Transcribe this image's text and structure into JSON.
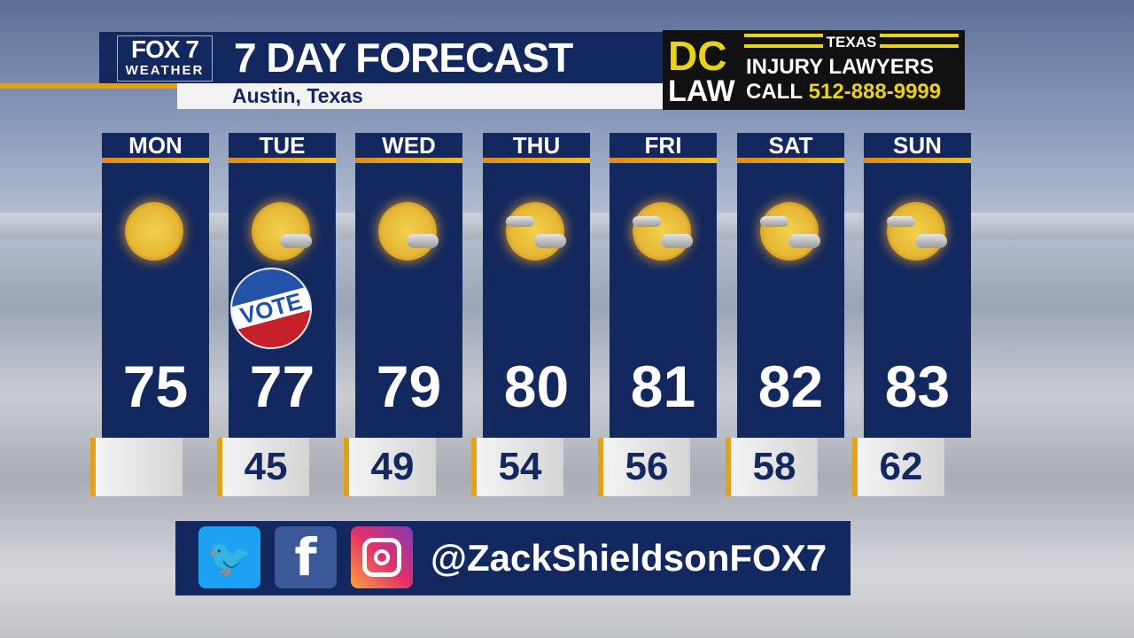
{
  "header": {
    "logo_top": "FOX 7",
    "logo_bottom": "WEATHER",
    "title": "7 DAY FORECAST",
    "location": "Austin, Texas"
  },
  "ad": {
    "brand_top": "DC",
    "brand_bottom": "LAW",
    "state": "TEXAS",
    "line1": "INJURY LAWYERS",
    "call": "CALL",
    "phone": "512-888-9999"
  },
  "days": [
    {
      "day": "MON",
      "high": "75",
      "low": "",
      "icon": "sunny-icon"
    },
    {
      "day": "TUE",
      "high": "77",
      "low": "45",
      "icon": "mostly-sunny-icon",
      "badge": "VOTE"
    },
    {
      "day": "WED",
      "high": "79",
      "low": "49",
      "icon": "mostly-sunny-icon"
    },
    {
      "day": "THU",
      "high": "80",
      "low": "54",
      "icon": "partly-cloudy-icon"
    },
    {
      "day": "FRI",
      "high": "81",
      "low": "56",
      "icon": "partly-cloudy-icon"
    },
    {
      "day": "SAT",
      "high": "82",
      "low": "58",
      "icon": "partly-cloudy-icon"
    },
    {
      "day": "SUN",
      "high": "83",
      "low": "62",
      "icon": "partly-cloudy-icon"
    }
  ],
  "social": {
    "handle": "@ZackShieldsonFOX7",
    "twitter_color": "#1da1f2",
    "facebook_color": "#3b5998"
  }
}
